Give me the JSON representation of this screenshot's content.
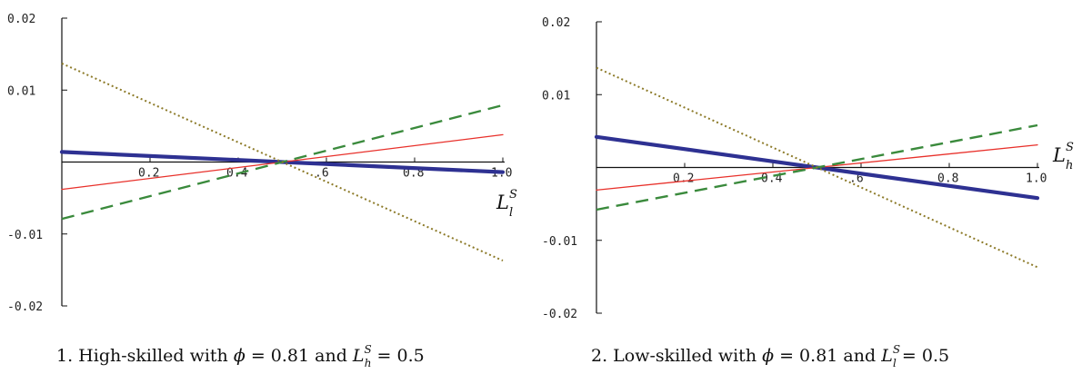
{
  "chart_data": [
    {
      "type": "line",
      "panel": "1",
      "caption": {
        "prefix": "1.  High-skilled with ",
        "phi_symbol": "ϕ",
        "phi_value": " = 0.81 and ",
        "L_symbol": "L",
        "L_sub": "h",
        "L_sup": "S",
        "L_value": " = 0.5"
      },
      "xlabel": {
        "main": "L",
        "sub": "l",
        "sup": "S"
      },
      "xlim": [
        0,
        1.0
      ],
      "ylim": [
        -0.02,
        0.02
      ],
      "x_ticks": [
        "0.2",
        "0.4",
        ".6",
        "0.8",
        "1.0"
      ],
      "y_ticks": [
        "0.02",
        "0.01",
        "-0.01",
        "-0.02"
      ],
      "series": [
        {
          "style": "solid-thick",
          "color": "#2e3192",
          "x": [
            0,
            0.5,
            1.0
          ],
          "y": [
            0.0014,
            0.0,
            -0.0014
          ]
        },
        {
          "style": "solid-thin",
          "color": "#e8302a",
          "x": [
            0,
            0.5,
            1.0
          ],
          "y": [
            -0.0038,
            0.0,
            0.0038
          ]
        },
        {
          "style": "dashed",
          "color": "#3a8a3c",
          "x": [
            0,
            0.5,
            1.0
          ],
          "y": [
            -0.0079,
            0.0,
            0.0079
          ]
        },
        {
          "style": "dotted",
          "color": "#8c7a28",
          "x": [
            0,
            0.5,
            1.0
          ],
          "y": [
            0.0137,
            0.0,
            -0.0137
          ]
        }
      ]
    },
    {
      "type": "line",
      "panel": "2",
      "caption": {
        "prefix": "2.  Low-skilled with ",
        "phi_symbol": "ϕ",
        "phi_value": " = 0.81 and ",
        "L_symbol": "L",
        "L_sub": "l",
        "L_sup": "S",
        "L_value": " = 0.5"
      },
      "xlabel": {
        "main": "L",
        "sub": "h",
        "sup": "S"
      },
      "xlim": [
        0,
        1.0
      ],
      "ylim": [
        -0.02,
        0.02
      ],
      "x_ticks": [
        "0.2",
        "0.4",
        ".6",
        "0.8",
        "1.0"
      ],
      "y_ticks": [
        "0.02",
        "0.01",
        "-0.01",
        "-0.02"
      ],
      "series": [
        {
          "style": "solid-thick",
          "color": "#2e3192",
          "x": [
            0,
            0.5,
            1.0
          ],
          "y": [
            0.0042,
            0.0,
            -0.0042
          ]
        },
        {
          "style": "solid-thin",
          "color": "#e8302a",
          "x": [
            0,
            0.5,
            1.0
          ],
          "y": [
            -0.0031,
            0.0,
            0.0031
          ]
        },
        {
          "style": "dashed",
          "color": "#3a8a3c",
          "x": [
            0,
            0.5,
            1.0
          ],
          "y": [
            -0.0058,
            0.0,
            0.0058
          ]
        },
        {
          "style": "dotted",
          "color": "#8c7a28",
          "x": [
            0,
            0.5,
            1.0
          ],
          "y": [
            0.0137,
            0.0,
            -0.0137
          ]
        }
      ]
    }
  ]
}
